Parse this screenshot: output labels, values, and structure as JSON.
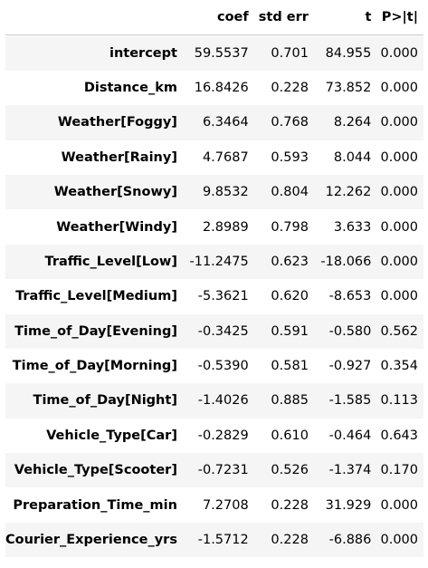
{
  "table": {
    "columns": [
      "",
      "coef",
      "std err",
      "t",
      "P>|t|"
    ],
    "rows": [
      {
        "name": "intercept",
        "coef": "59.5537",
        "std_err": "0.701",
        "t": "84.955",
        "p": "0.000"
      },
      {
        "name": "Distance_km",
        "coef": "16.8426",
        "std_err": "0.228",
        "t": "73.852",
        "p": "0.000"
      },
      {
        "name": "Weather[Foggy]",
        "coef": "6.3464",
        "std_err": "0.768",
        "t": "8.264",
        "p": "0.000"
      },
      {
        "name": "Weather[Rainy]",
        "coef": "4.7687",
        "std_err": "0.593",
        "t": "8.044",
        "p": "0.000"
      },
      {
        "name": "Weather[Snowy]",
        "coef": "9.8532",
        "std_err": "0.804",
        "t": "12.262",
        "p": "0.000"
      },
      {
        "name": "Weather[Windy]",
        "coef": "2.8989",
        "std_err": "0.798",
        "t": "3.633",
        "p": "0.000"
      },
      {
        "name": "Traffic_Level[Low]",
        "coef": "-11.2475",
        "std_err": "0.623",
        "t": "-18.066",
        "p": "0.000"
      },
      {
        "name": "Traffic_Level[Medium]",
        "coef": "-5.3621",
        "std_err": "0.620",
        "t": "-8.653",
        "p": "0.000"
      },
      {
        "name": "Time_of_Day[Evening]",
        "coef": "-0.3425",
        "std_err": "0.591",
        "t": "-0.580",
        "p": "0.562"
      },
      {
        "name": "Time_of_Day[Morning]",
        "coef": "-0.5390",
        "std_err": "0.581",
        "t": "-0.927",
        "p": "0.354"
      },
      {
        "name": "Time_of_Day[Night]",
        "coef": "-1.4026",
        "std_err": "0.885",
        "t": "-1.585",
        "p": "0.113"
      },
      {
        "name": "Vehicle_Type[Car]",
        "coef": "-0.2829",
        "std_err": "0.610",
        "t": "-0.464",
        "p": "0.643"
      },
      {
        "name": "Vehicle_Type[Scooter]",
        "coef": "-0.7231",
        "std_err": "0.526",
        "t": "-1.374",
        "p": "0.170"
      },
      {
        "name": "Preparation_Time_min",
        "coef": "7.2708",
        "std_err": "0.228",
        "t": "31.929",
        "p": "0.000"
      },
      {
        "name": "Courier_Experience_yrs",
        "coef": "-1.5712",
        "std_err": "0.228",
        "t": "-6.886",
        "p": "0.000"
      }
    ]
  }
}
